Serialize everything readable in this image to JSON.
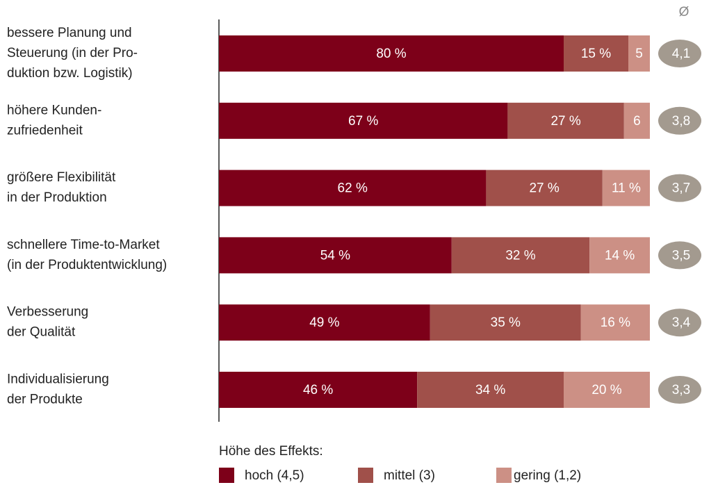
{
  "chart_data": {
    "type": "stacked-bar-horizontal",
    "categories": [
      [
        "bessere Planung und",
        "Steuerung (in der Pro-",
        "duktion bzw. Logistik)"
      ],
      [
        "höhere Kunden-",
        "zufriedenheit"
      ],
      [
        "größere Flexibilität",
        "in der Produktion"
      ],
      [
        "schnellere Time-to-Market",
        "(in der Produktentwicklung)"
      ],
      [
        "Verbesserung",
        "der Qualität"
      ],
      [
        "Individualisierung",
        "der Produkte"
      ]
    ],
    "xlim": [
      0,
      100
    ],
    "series": [
      {
        "name": "hoch (4,5)",
        "color": "#7d0019",
        "values": [
          80,
          67,
          62,
          54,
          49,
          46
        ],
        "value_labels": [
          "80 %",
          "67 %",
          "62 %",
          "54 %",
          "49 %",
          "46 %"
        ]
      },
      {
        "name": "mittel (3)",
        "color": "#a0504a",
        "values": [
          15,
          27,
          27,
          32,
          35,
          34
        ],
        "value_labels": [
          "15 %",
          "27 %",
          "27 %",
          "32 %",
          "35 %",
          "34 %"
        ]
      },
      {
        "name": "gering (1,2)",
        "color": "#cc9085",
        "values": [
          5,
          6,
          11,
          14,
          16,
          20
        ],
        "value_labels": [
          "5",
          "6",
          "11 %",
          "14 %",
          "16 %",
          "20 %"
        ]
      }
    ],
    "averages": {
      "label": "Ø",
      "color": "#a39a8f",
      "values": [
        4.1,
        3.8,
        3.7,
        3.5,
        3.4,
        3.3
      ],
      "value_labels": [
        "4,1",
        "3,8",
        "3,7",
        "3,5",
        "3,4",
        "3,3"
      ]
    },
    "legend_title": "Höhe des Effekts:"
  }
}
